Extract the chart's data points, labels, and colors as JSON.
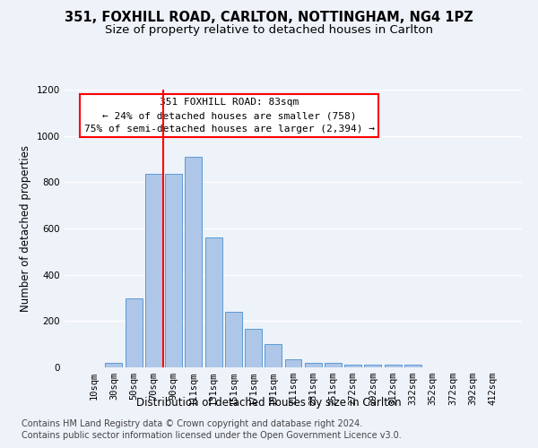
{
  "title": "351, FOXHILL ROAD, CARLTON, NOTTINGHAM, NG4 1PZ",
  "subtitle": "Size of property relative to detached houses in Carlton",
  "xlabel": "Distribution of detached houses by size in Carlton",
  "ylabel": "Number of detached properties",
  "categories": [
    "10sqm",
    "30sqm",
    "50sqm",
    "70sqm",
    "90sqm",
    "111sqm",
    "131sqm",
    "151sqm",
    "171sqm",
    "191sqm",
    "211sqm",
    "231sqm",
    "251sqm",
    "272sqm",
    "292sqm",
    "312sqm",
    "332sqm",
    "352sqm",
    "372sqm",
    "392sqm",
    "412sqm"
  ],
  "values": [
    0,
    20,
    300,
    835,
    835,
    910,
    560,
    240,
    165,
    100,
    35,
    20,
    20,
    10,
    10,
    10,
    10,
    0,
    0,
    0,
    0
  ],
  "bar_color": "#aec6e8",
  "bar_edgecolor": "#5b9bd5",
  "ylim": [
    0,
    1200
  ],
  "yticks": [
    0,
    200,
    400,
    600,
    800,
    1000,
    1200
  ],
  "annotation_line1": "351 FOXHILL ROAD: 83sqm",
  "annotation_line2": "← 24% of detached houses are smaller (758)",
  "annotation_line3": "75% of semi-detached houses are larger (2,394) →",
  "footer_line1": "Contains HM Land Registry data © Crown copyright and database right 2024.",
  "footer_line2": "Contains public sector information licensed under the Open Government Licence v3.0.",
  "background_color": "#eef2f9",
  "grid_color": "#ffffff",
  "title_fontsize": 10.5,
  "subtitle_fontsize": 9.5,
  "axis_label_fontsize": 8.5,
  "tick_fontsize": 7.5,
  "annotation_fontsize": 8,
  "footer_fontsize": 7
}
